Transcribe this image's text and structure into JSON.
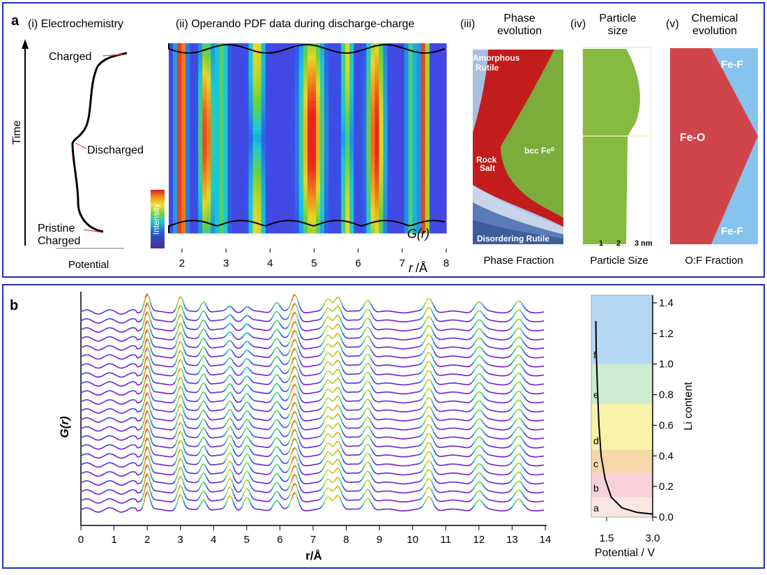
{
  "panel_a": {
    "label": "a",
    "electrochemistry": {
      "title": "(i) Electrochemistry",
      "time_label": "Time",
      "potential_label": "Potential",
      "charged_label": "Charged",
      "discharged_label": "Discharged",
      "pristine_label": "Pristine",
      "pristine_charged_label": "Charged"
    },
    "pdf": {
      "title": "(ii) Operando PDF data during discharge-charge",
      "intensity_label": "Intensity",
      "g_label": "G(r)",
      "x_ticks": [
        "2",
        "3",
        "4",
        "5",
        "6",
        "7",
        "8"
      ],
      "x_label_r": "r",
      "x_label_unit": "/Å"
    },
    "phase": {
      "num": "(iii)",
      "title_line1": "Phase",
      "title_line2": "evolution",
      "labels": [
        "Amorphous",
        "Rutile",
        "Rock",
        "Salt",
        "bcc Fe⁰",
        "Disordering Rutile"
      ],
      "caption": "Phase Fraction",
      "colors": {
        "amorphous": "#a9bfdf",
        "rocksalt": "#c21c1c",
        "bcc": "#7cac3c",
        "disorder": "#5a7ab8"
      }
    },
    "particle": {
      "num": "(iv)",
      "title_line1": "Particle",
      "title_line2": "size",
      "ticks": [
        "1",
        "2",
        "3 nm"
      ],
      "caption": "Particle Size"
    },
    "chemical": {
      "num": "(v)",
      "title_line1": "Chemical",
      "title_line2": "evolution",
      "labels": [
        "Fe-F",
        "Fe-O",
        "Fe-F"
      ],
      "caption": "O:F Fraction",
      "colors": {
        "feo": "#d0454a",
        "fef": "#86c4ee"
      }
    }
  },
  "panel_b": {
    "label": "b"
  },
  "chart_data": [
    {
      "type": "line",
      "title": "",
      "xlabel": "r/Å",
      "ylabel": "G(r)",
      "xlim": [
        0,
        14
      ],
      "x_ticks": [
        "0",
        "1",
        "2",
        "3",
        "4",
        "5",
        "6",
        "7",
        "8",
        "9",
        "10",
        "11",
        "12",
        "13",
        "14"
      ],
      "n_curves": 23,
      "peak_positions_angstrom": [
        2.0,
        3.0,
        3.7,
        4.5,
        5.0,
        5.9,
        6.45,
        7.45,
        7.75,
        8.65,
        10.5,
        12.0,
        13.2
      ],
      "color_map": [
        "#7a22d6",
        "#2f56e8",
        "#19c9d8",
        "#6ad33a",
        "#e8d62a",
        "#f08a1a",
        "#e8241e"
      ]
    },
    {
      "type": "line",
      "title": "",
      "xlabel": "Potential / V",
      "ylabel": "Li content",
      "xlim": [
        1.0,
        3.0
      ],
      "ylim": [
        0.0,
        1.4
      ],
      "x_ticks": [
        "1.5",
        "3.0"
      ],
      "y_ticks": [
        "0.0",
        "0.2",
        "0.4",
        "0.6",
        "0.8",
        "1.0",
        "1.2",
        "1.4"
      ],
      "regions": [
        {
          "label": "a",
          "from": 0.0,
          "to": 0.13,
          "color": "#f8e6e3"
        },
        {
          "label": "b",
          "from": 0.13,
          "to": 0.29,
          "color": "#f7d1d7"
        },
        {
          "label": "c",
          "from": 0.29,
          "to": 0.44,
          "color": "#f6d7a9"
        },
        {
          "label": "d",
          "from": 0.44,
          "to": 0.74,
          "color": "#f7f2a6"
        },
        {
          "label": "e",
          "from": 0.74,
          "to": 1.0,
          "color": "#cdeccf"
        },
        {
          "label": "f",
          "from": 1.0,
          "to": 1.45,
          "color": "#b4d7f4"
        }
      ],
      "series": [
        {
          "points": [
            [
              1.15,
              1.28
            ],
            [
              1.16,
              1.1
            ],
            [
              1.2,
              0.85
            ],
            [
              1.25,
              0.6
            ],
            [
              1.32,
              0.4
            ],
            [
              1.45,
              0.25
            ],
            [
              1.65,
              0.13
            ],
            [
              2.0,
              0.06
            ],
            [
              2.5,
              0.03
            ],
            [
              3.0,
              0.02
            ]
          ]
        }
      ]
    }
  ]
}
